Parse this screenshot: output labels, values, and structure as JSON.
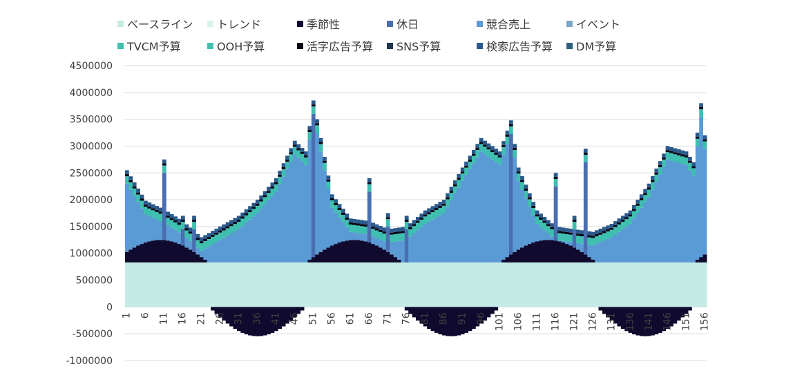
{
  "chart_data": {
    "type": "bar",
    "stacked": true,
    "title": "",
    "xlabel": "",
    "ylabel": "",
    "ylim": [
      -1000000,
      4500000
    ],
    "ytick_values": [
      -1000000,
      -500000,
      0,
      500000,
      1000000,
      1500000,
      2000000,
      2500000,
      3000000,
      3500000,
      4000000,
      4500000
    ],
    "ytick_labels": [
      "-1000000",
      "-500000",
      "0",
      "500000",
      "1000000",
      "1500000",
      "2000000",
      "2500000",
      "3000000",
      "3500000",
      "4000000",
      "4500000"
    ],
    "x_start": 1,
    "x_end": 156,
    "xtick_labels": [
      "1",
      "6",
      "11",
      "16",
      "21",
      "26",
      "31",
      "36",
      "41",
      "46",
      "51",
      "56",
      "61",
      "66",
      "71",
      "76",
      "81",
      "86",
      "91",
      "96",
      "101",
      "106",
      "111",
      "116",
      "121",
      "126",
      "131",
      "136",
      "141",
      "146",
      "151",
      "156"
    ],
    "grid": "horizontal",
    "legend_position": "top",
    "series": [
      {
        "name": "ベースライン",
        "color": "#c5ebe6"
      },
      {
        "name": "トレンド",
        "color": "#dcf2ee"
      },
      {
        "name": "季節性",
        "color": "#0f0a2e"
      },
      {
        "name": "休日",
        "color": "#4a6fb0"
      },
      {
        "name": "競合売上",
        "color": "#5b9bd5"
      },
      {
        "name": "イベント",
        "color": "#7aa8c8"
      },
      {
        "name": "TVCM予算",
        "color": "#3fbfb0"
      },
      {
        "name": "OOH予算",
        "color": "#45c0ad"
      },
      {
        "name": "活字広告予算",
        "color": "#080816"
      },
      {
        "name": "SNS予算",
        "color": "#22344f"
      },
      {
        "name": "検索広告予算",
        "color": "#2d5a8c"
      },
      {
        "name": "DM予算",
        "color": "#2f5f7f"
      }
    ],
    "values_note": "",
    "baseline_value": 830000,
    "approx_total_top": [
      [
        1,
        2550000
      ],
      [
        6,
        1980000
      ],
      [
        11,
        1820000
      ],
      [
        16,
        1600000
      ],
      [
        21,
        1300000
      ],
      [
        26,
        1500000
      ],
      [
        31,
        1700000
      ],
      [
        36,
        2000000
      ],
      [
        41,
        2400000
      ],
      [
        46,
        3100000
      ],
      [
        49,
        2900000
      ],
      [
        51,
        3850000
      ],
      [
        56,
        2100000
      ],
      [
        61,
        1650000
      ],
      [
        66,
        1600000
      ],
      [
        71,
        1450000
      ],
      [
        76,
        1500000
      ],
      [
        81,
        1800000
      ],
      [
        86,
        2000000
      ],
      [
        91,
        2600000
      ],
      [
        96,
        3150000
      ],
      [
        101,
        2900000
      ],
      [
        104,
        3480000
      ],
      [
        106,
        2600000
      ],
      [
        111,
        1800000
      ],
      [
        116,
        1500000
      ],
      [
        121,
        1450000
      ],
      [
        126,
        1400000
      ],
      [
        131,
        1550000
      ],
      [
        136,
        1800000
      ],
      [
        141,
        2300000
      ],
      [
        146,
        3000000
      ],
      [
        151,
        2900000
      ],
      [
        153,
        2700000
      ],
      [
        155,
        3800000
      ],
      [
        156,
        3200000
      ]
    ],
    "events": [
      [
        11,
        2750000
      ],
      [
        16,
        1700000
      ],
      [
        19,
        1700000
      ],
      [
        51,
        3850000
      ],
      [
        66,
        2400000
      ],
      [
        71,
        1750000
      ],
      [
        76,
        1700000
      ],
      [
        104,
        3480000
      ],
      [
        116,
        2500000
      ],
      [
        121,
        1700000
      ],
      [
        124,
        2950000
      ]
    ]
  }
}
